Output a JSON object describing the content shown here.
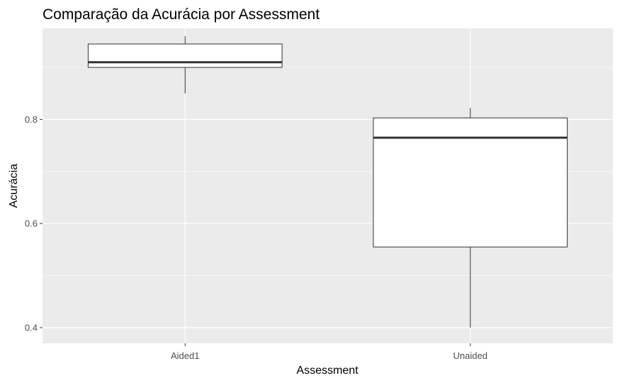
{
  "chart_data": {
    "type": "boxplot",
    "title": "Comparação da Acurácia por Assessment",
    "xlabel": "Assessment",
    "ylabel": "Acurácia",
    "categories": [
      "Aided1",
      "Unaided"
    ],
    "boxes": [
      {
        "category": "Aided1",
        "whisker_low": 0.85,
        "q1": 0.9,
        "median": 0.91,
        "q3": 0.945,
        "whisker_high": 0.96
      },
      {
        "category": "Unaided",
        "whisker_low": 0.4,
        "q1": 0.555,
        "median": 0.765,
        "q3": 0.803,
        "whisker_high": 0.822
      }
    ],
    "yticks": [
      0.4,
      0.6,
      0.8
    ],
    "ytick_labels": [
      "0.4",
      "0.6",
      "0.8"
    ],
    "ylim": [
      0.37,
      0.975
    ],
    "grid": true,
    "colors": {
      "panel_background": "#ebebeb",
      "grid": "#ffffff",
      "box_fill": "#ffffff",
      "box_stroke": "#333333",
      "median": "#333333"
    }
  }
}
